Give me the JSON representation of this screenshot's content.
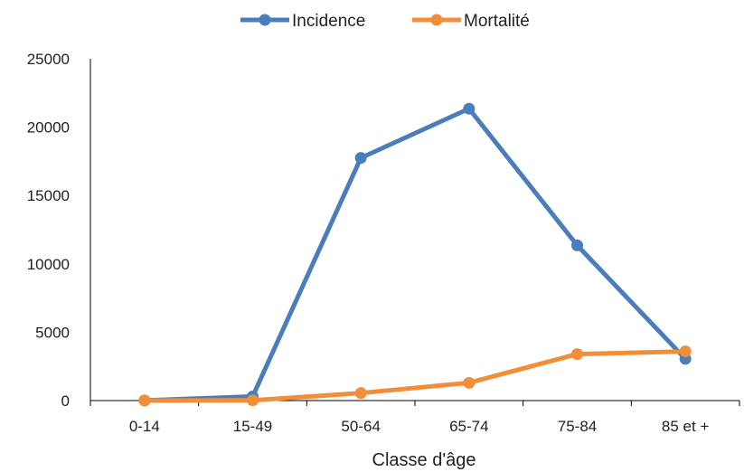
{
  "chart_data": {
    "type": "line",
    "categories": [
      "0-14",
      "15-49",
      "50-64",
      "65-74",
      "75-84",
      "85 et +"
    ],
    "series": [
      {
        "name": "Incidence",
        "color": "#4a7ebb",
        "values": [
          10,
          300,
          17750,
          21350,
          11350,
          3050
        ]
      },
      {
        "name": "Mortalité",
        "color": "#f28e3a",
        "values": [
          0,
          20,
          550,
          1300,
          3400,
          3600
        ]
      }
    ],
    "title": "",
    "xlabel": "Classe d'âge",
    "ylabel": "",
    "ylim": [
      0,
      25000
    ],
    "yticks": [
      "0",
      "5000",
      "10000",
      "15000",
      "20000",
      "25000"
    ],
    "grid": false,
    "legend_position": "top-center"
  }
}
